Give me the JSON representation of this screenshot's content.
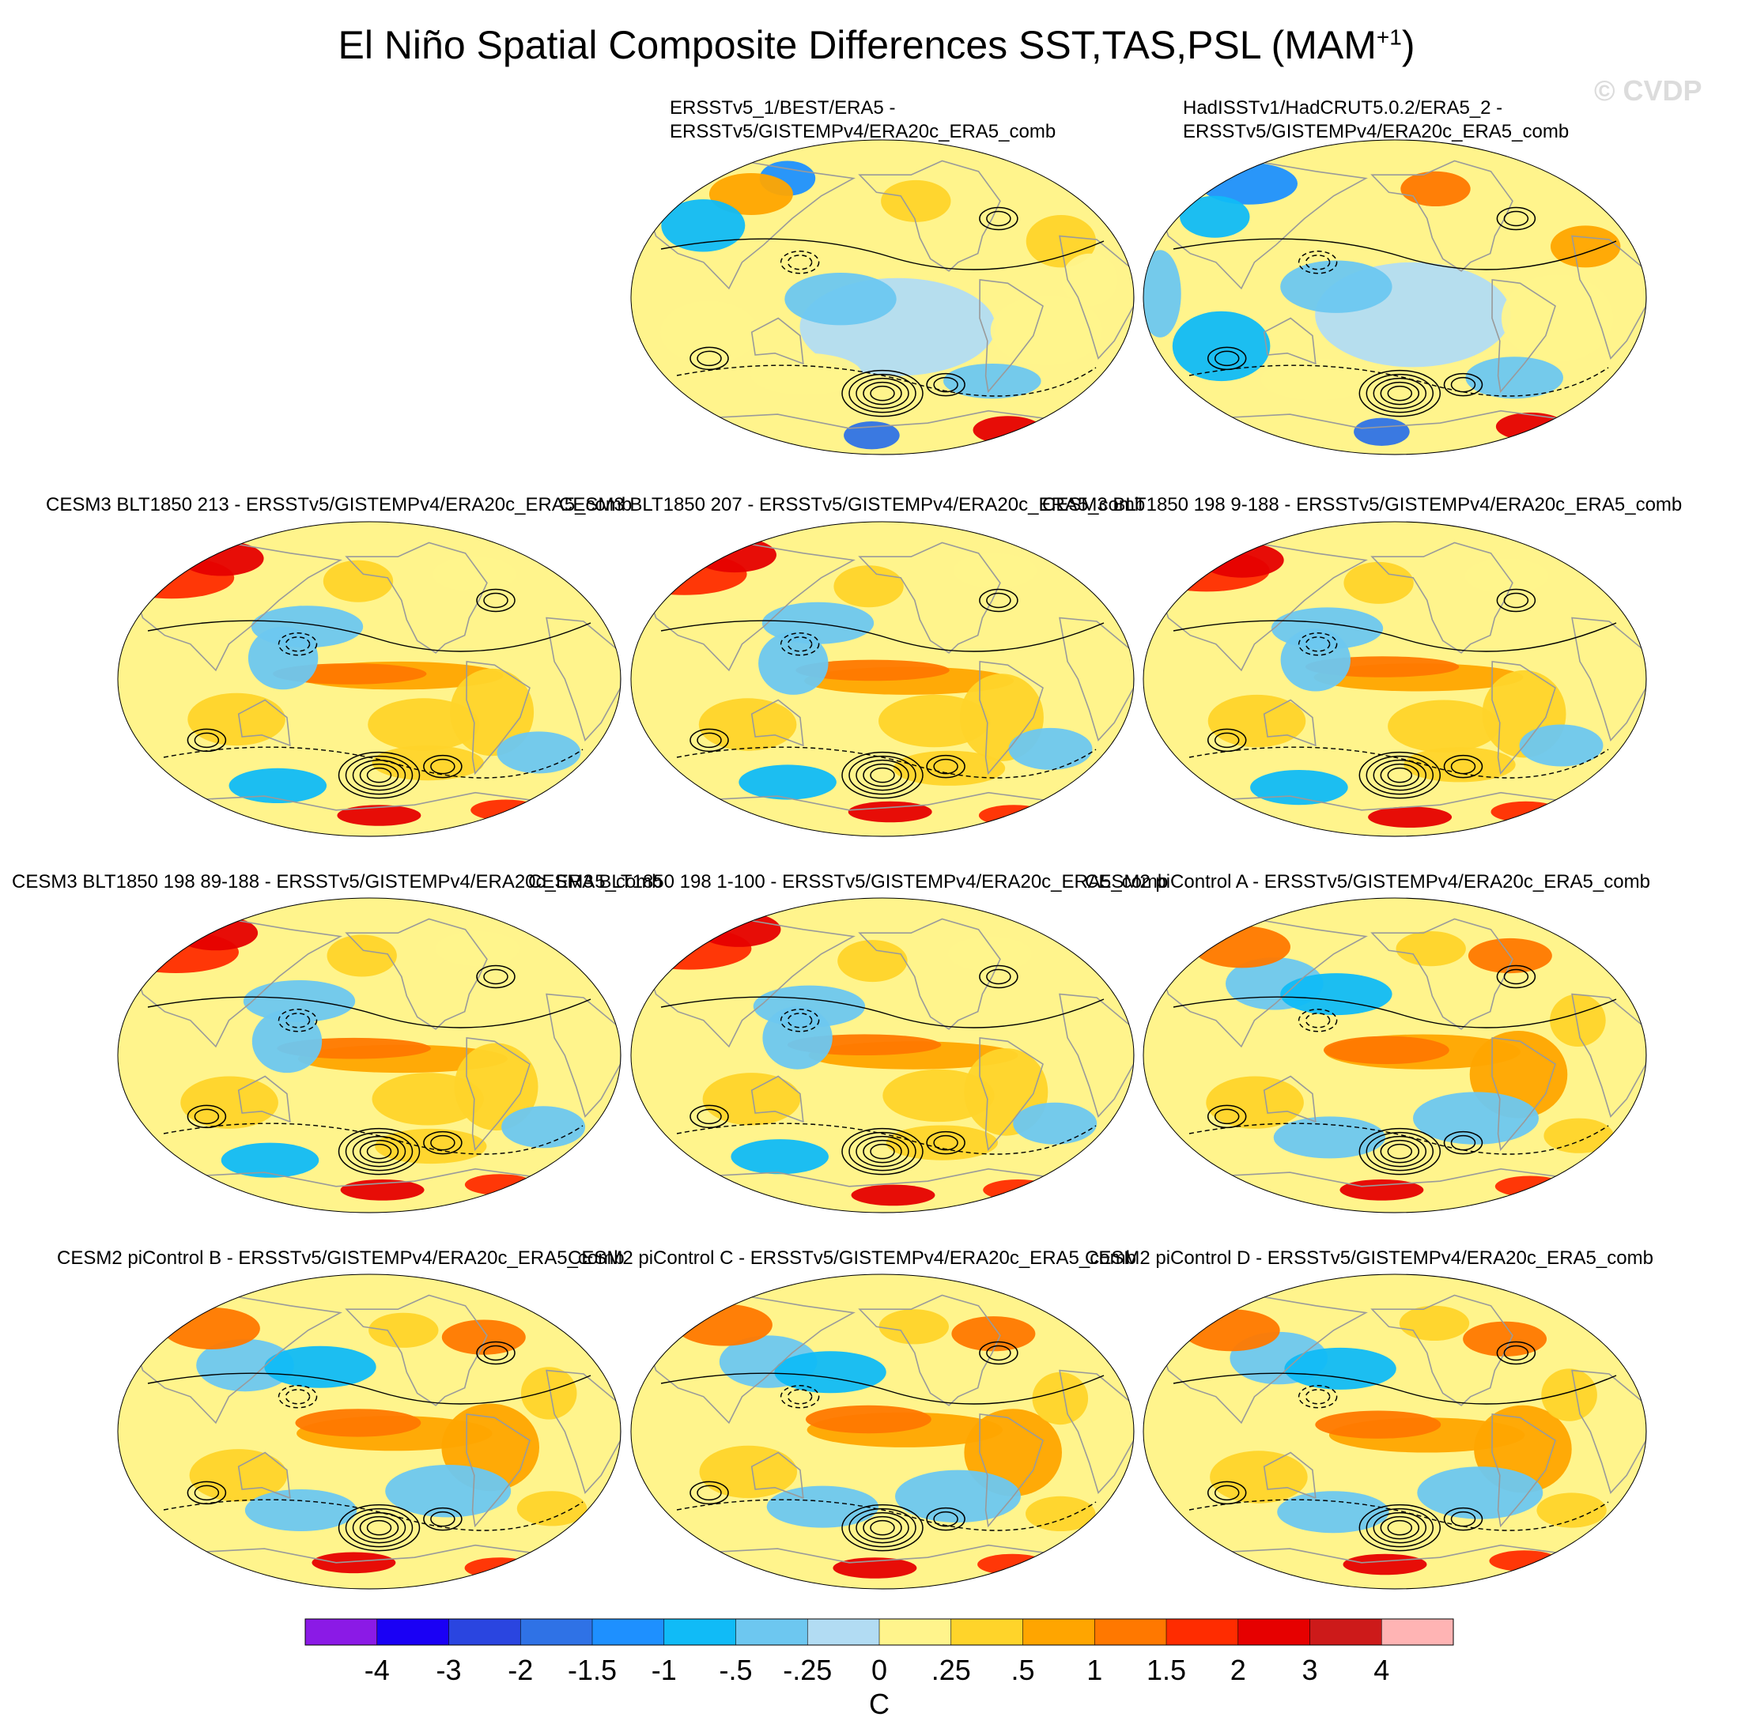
{
  "figure": {
    "title": "El Niño Spatial Composite Differences SST,TAS,PSL (MAM",
    "title_superscript": "+1",
    "title_close": ")",
    "watermark": "© CVDP"
  },
  "chart_data": {
    "type": "heatmap",
    "description_units": "C",
    "panels": [
      {
        "title_line1": "ERSSTv5_1/BEST/ERA5 -",
        "title_line2": "ERSSTv5/GISTEMPv4/ERA20c_ERA5_comb",
        "pattern": "obs1"
      },
      {
        "title_line1": "HadISSTv1/HadCRUT5.0.2/ERA5_2 -",
        "title_line2": "ERSSTv5/GISTEMPv4/ERA20c_ERA5_comb",
        "pattern": "obs2"
      },
      {
        "title_line1": "CESM3 BLT1850 213 - ERSSTv5/GISTEMPv4/ERA20c_ERA5_comb",
        "title_line2": "",
        "pattern": "warmpac"
      },
      {
        "title_line1": "CESM3 BLT1850 207 - ERSSTv5/GISTEMPv4/ERA20c_ERA5_comb",
        "title_line2": "",
        "pattern": "warmpac"
      },
      {
        "title_line1": "CESM3 BLT1850 198 9-188 - ERSSTv5/GISTEMPv4/ERA20c_ERA5_comb",
        "title_line2": "",
        "pattern": "warmpac"
      },
      {
        "title_line1": "CESM3 BLT1850 198 89-188 - ERSSTv5/GISTEMPv4/ERA20c_ERA5_comb",
        "title_line2": "",
        "pattern": "warmpac"
      },
      {
        "title_line1": "CESM3 BLT1850 198 1-100 - ERSSTv5/GISTEMPv4/ERA20c_ERA5_comb",
        "title_line2": "",
        "pattern": "warmpac"
      },
      {
        "title_line1": "CESM2 piControl A - ERSSTv5/GISTEMPv4/ERA20c_ERA5_comb",
        "title_line2": "",
        "pattern": "atl"
      },
      {
        "title_line1": "CESM2 piControl B - ERSSTv5/GISTEMPv4/ERA20c_ERA5_comb",
        "title_line2": "",
        "pattern": "atl"
      },
      {
        "title_line1": "CESM2 piControl C - ERSSTv5/GISTEMPv4/ERA20c_ERA5_comb",
        "title_line2": "",
        "pattern": "atl"
      },
      {
        "title_line1": "CESM2 piControl D - ERSSTv5/GISTEMPv4/ERA20c_ERA5_comb",
        "title_line2": "",
        "pattern": "atl"
      }
    ],
    "colorbar": {
      "ticks": [
        "-4",
        "-3",
        "-2",
        "-1.5",
        "-1",
        "-.5",
        "-.25",
        "0",
        ".25",
        ".5",
        "1",
        "1.5",
        "2",
        "3",
        "4"
      ],
      "colors": [
        "#8b1ae6",
        "#1a00f5",
        "#2a45e0",
        "#2f72e6",
        "#1e90ff",
        "#10bbf7",
        "#6dc7f0",
        "#b2dcf3",
        "#fff48c",
        "#ffd42a",
        "#ffa500",
        "#ff7800",
        "#ff2c00",
        "#e60000",
        "#cd1a1a",
        "#ffb4b4"
      ],
      "units": "C"
    }
  }
}
